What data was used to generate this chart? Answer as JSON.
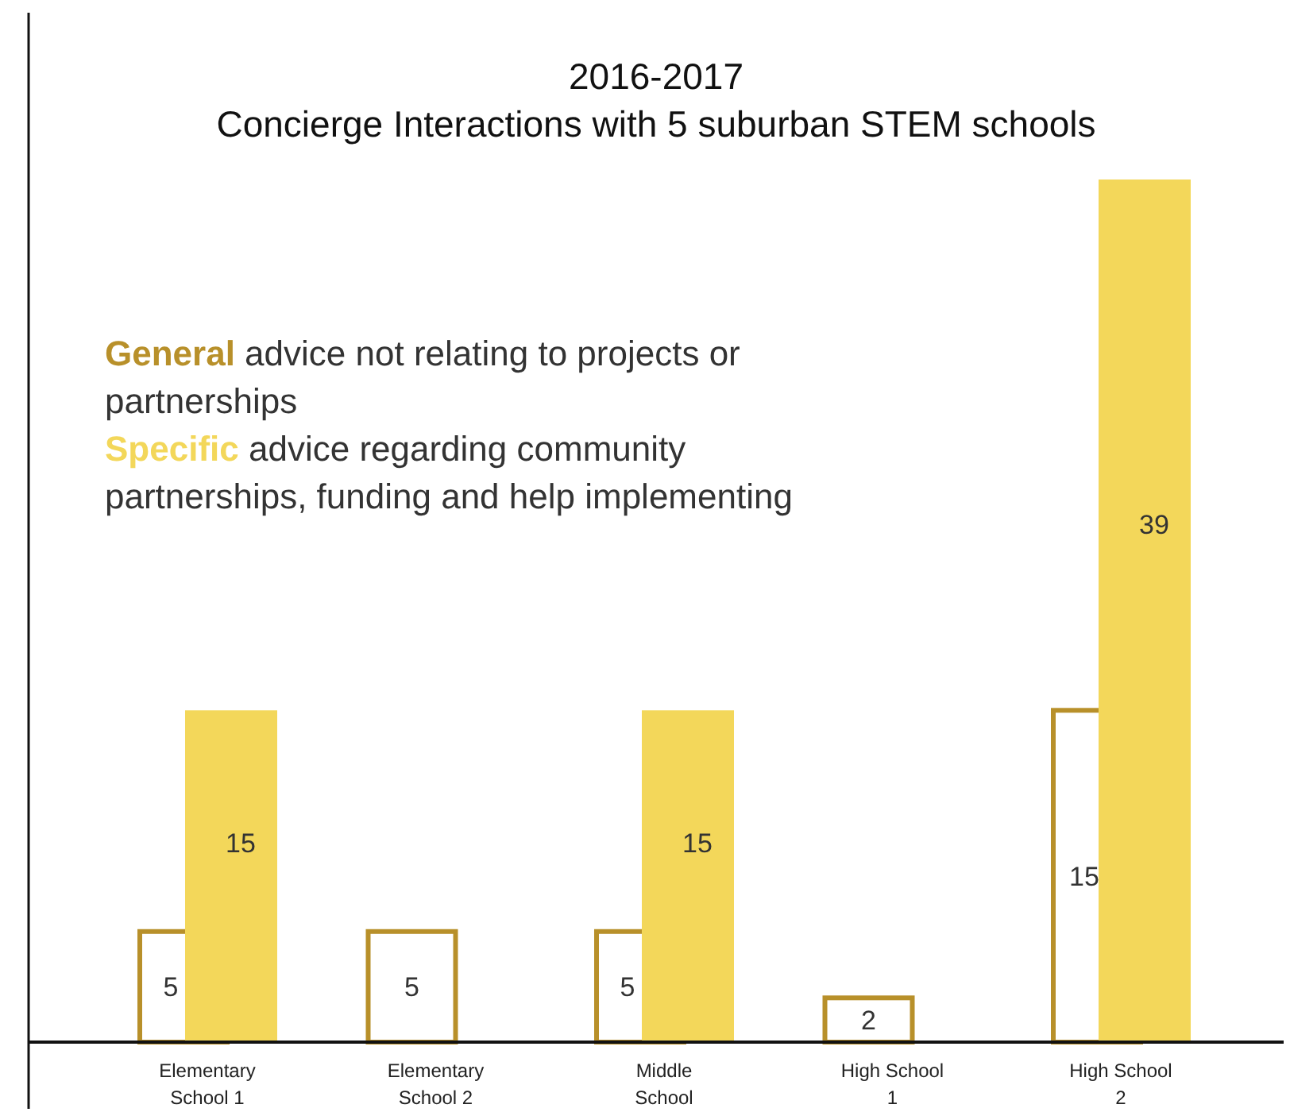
{
  "chart_data": {
    "type": "bar",
    "title": "2016-2017\nConcierge Interactions with 5 suburban STEM schools",
    "categories": [
      "Elementary School 1",
      "Elementary School 2",
      "Middle School",
      "High School 1",
      "High School 2"
    ],
    "series": [
      {
        "name": "General",
        "color": "#b8902a",
        "values": [
          5,
          5,
          5,
          2,
          15
        ]
      },
      {
        "name": "Specific",
        "color": "#f3d75a",
        "values": [
          15,
          null,
          15,
          null,
          39
        ]
      }
    ],
    "annotations": [
      "advice not relating to projects or partnerships",
      "advice regarding community partnerships, funding and help implementing"
    ],
    "data_labels": true,
    "legend": "top left",
    "grid": false
  }
}
